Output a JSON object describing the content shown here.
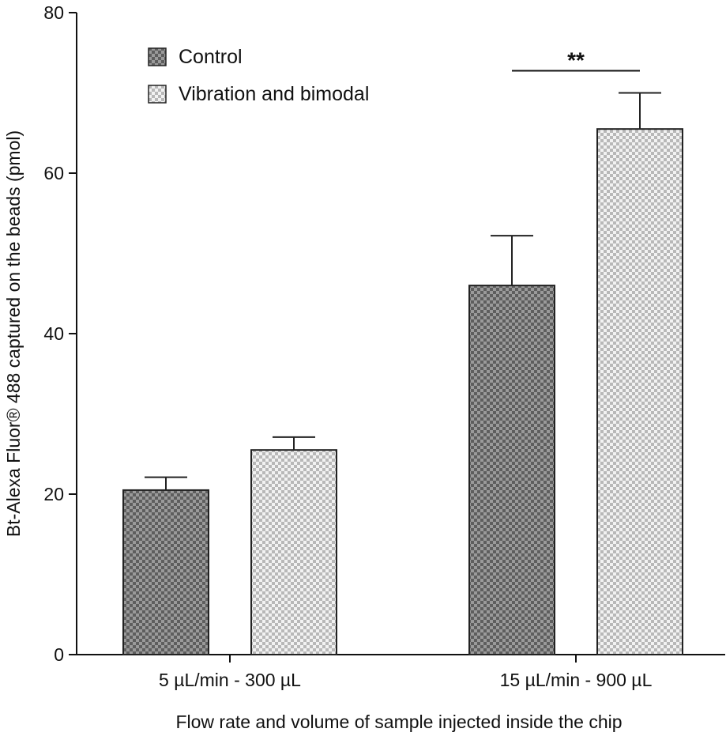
{
  "chart_data": {
    "type": "bar",
    "categories": [
      "5 µL/min - 300 µL",
      "15 µL/min - 900 µL"
    ],
    "series": [
      {
        "name": "Control",
        "values": [
          20.5,
          46.0
        ],
        "errors": [
          1.6,
          6.2
        ],
        "color": "#7a7a7a",
        "pattern": "dark-checker"
      },
      {
        "name": "Vibration and bimodal",
        "values": [
          25.5,
          65.5
        ],
        "errors": [
          1.6,
          4.5
        ],
        "color": "#bdbdbd",
        "pattern": "light-checker"
      }
    ],
    "xlabel": "Flow rate and volume of sample injected inside the chip",
    "ylabel": "Bt-Alexa Fluor® 488 captured on the beads (pmol)",
    "ylim": [
      0,
      80
    ],
    "yticks": [
      0,
      20,
      40,
      60,
      80
    ],
    "grid": false,
    "legend_position": "top-left",
    "annotations": [
      {
        "text": "**",
        "category_index": 1
      }
    ]
  }
}
